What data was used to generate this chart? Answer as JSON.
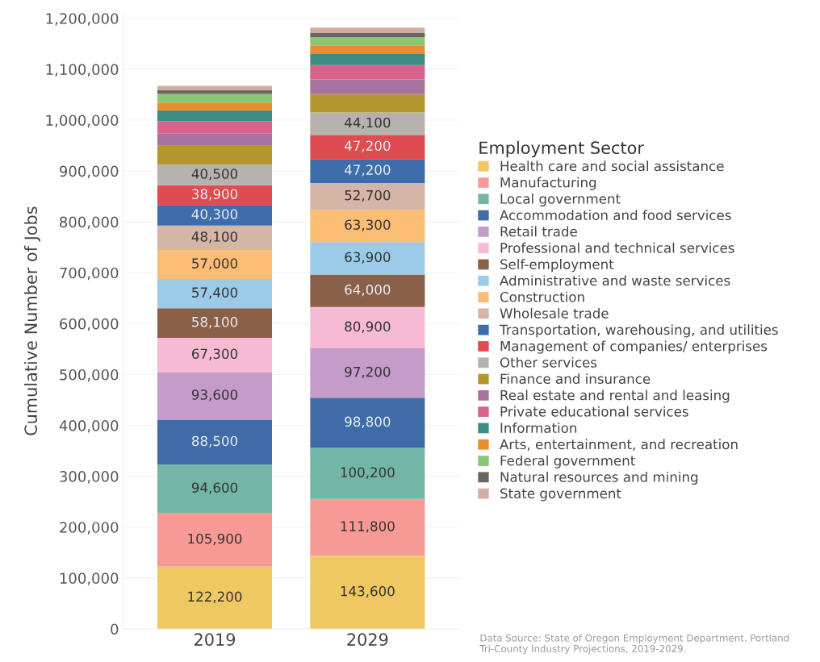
{
  "chart_data": {
    "type": "bar",
    "stacked": true,
    "ylabel": "Cumulative Number of Jobs",
    "legend_title": "Employment Sector",
    "legend": "right",
    "grid": "y",
    "categories": [
      "2019",
      "2029"
    ],
    "ylim": [
      0,
      1210000
    ],
    "yticks": [
      {
        "value": 0,
        "label": "0"
      },
      {
        "value": 100000,
        "label": "100,000"
      },
      {
        "value": 200000,
        "label": "200,000"
      },
      {
        "value": 300000,
        "label": "300,000"
      },
      {
        "value": 400000,
        "label": "400,000"
      },
      {
        "value": 500000,
        "label": "500,000"
      },
      {
        "value": 600000,
        "label": "600,000"
      },
      {
        "value": 700000,
        "label": "700,000"
      },
      {
        "value": 800000,
        "label": "800,000"
      },
      {
        "value": 900000,
        "label": "900,000"
      },
      {
        "value": 1000000,
        "label": "1,000,000"
      },
      {
        "value": 1100000,
        "label": "1,100,000"
      },
      {
        "value": 1200000,
        "label": "1,200,000"
      }
    ],
    "series": [
      {
        "name": "Health care and social assistance",
        "color": "#f0c862",
        "values": [
          122200,
          143600
        ],
        "value_labels": [
          "122,200",
          "143,600"
        ]
      },
      {
        "name": "Manufacturing",
        "color": "#f79a95",
        "values": [
          105900,
          111800
        ],
        "value_labels": [
          "105,900",
          "111,800"
        ]
      },
      {
        "name": "Local government",
        "color": "#74b6a5",
        "values": [
          94600,
          100200
        ],
        "value_labels": [
          "94,600",
          "100,200"
        ]
      },
      {
        "name": "Accommodation and food services",
        "color": "#3f6ba6",
        "values": [
          88500,
          98800
        ],
        "value_labels": [
          "88,500",
          "98,800"
        ]
      },
      {
        "name": "Retail trade",
        "color": "#c49bc9",
        "values": [
          93600,
          97200
        ],
        "value_labels": [
          "93,600",
          "97,200"
        ]
      },
      {
        "name": "Professional and technical services",
        "color": "#f7bad4",
        "values": [
          67300,
          80900
        ],
        "value_labels": [
          "67,300",
          "80,900"
        ]
      },
      {
        "name": "Self-employment",
        "color": "#8a6049",
        "values": [
          58100,
          64000
        ],
        "value_labels": [
          "58,100",
          "64,000"
        ]
      },
      {
        "name": "Administrative and waste services",
        "color": "#9ccbea",
        "values": [
          57400,
          63900
        ],
        "value_labels": [
          "57,400",
          "63,900"
        ]
      },
      {
        "name": "Construction",
        "color": "#fbbd74",
        "values": [
          57000,
          63300
        ],
        "value_labels": [
          "57,000",
          "63,300"
        ]
      },
      {
        "name": "Wholesale trade",
        "color": "#d5b6a6",
        "values": [
          48100,
          52700
        ],
        "value_labels": [
          "48,100",
          "52,700"
        ]
      },
      {
        "name": "Transportation, warehousing, and utilities",
        "color": "#3e6dab",
        "values": [
          40300,
          47200
        ],
        "value_labels": [
          "40,300",
          "47,200"
        ]
      },
      {
        "name": "Management of companies/ enterprises",
        "color": "#e04b50",
        "values": [
          38900,
          47200
        ],
        "value_labels": [
          "38,900",
          "47,200"
        ]
      },
      {
        "name": "Other services",
        "color": "#b8b2ae",
        "values": [
          40500,
          44100
        ],
        "value_labels": [
          "40,500",
          "44,100"
        ]
      },
      {
        "name": "Finance and insurance",
        "color": "#b4962f",
        "values": [
          37000,
          36000
        ]
      },
      {
        "name": "Real estate and rental and leasing",
        "color": "#a6739f",
        "values": [
          24000,
          29000
        ]
      },
      {
        "name": "Private educational services",
        "color": "#d9628c",
        "values": [
          24000,
          28000
        ]
      },
      {
        "name": "Information",
        "color": "#3c8b84",
        "values": [
          22000,
          22000
        ]
      },
      {
        "name": "Arts, entertainment, and recreation",
        "color": "#ee8c2c",
        "values": [
          15000,
          17000
        ]
      },
      {
        "name": "Federal government",
        "color": "#86c873",
        "values": [
          17000,
          16000
        ]
      },
      {
        "name": "Natural resources and mining",
        "color": "#6b6660",
        "values": [
          8000,
          9000
        ]
      },
      {
        "name": "State government",
        "color": "#d3ada2",
        "values": [
          8000,
          10000
        ]
      }
    ],
    "annotations": [
      "Data Source: State of Oregon Employment Department. Portland Tri-County Industry Projections, 2019-2029."
    ]
  }
}
